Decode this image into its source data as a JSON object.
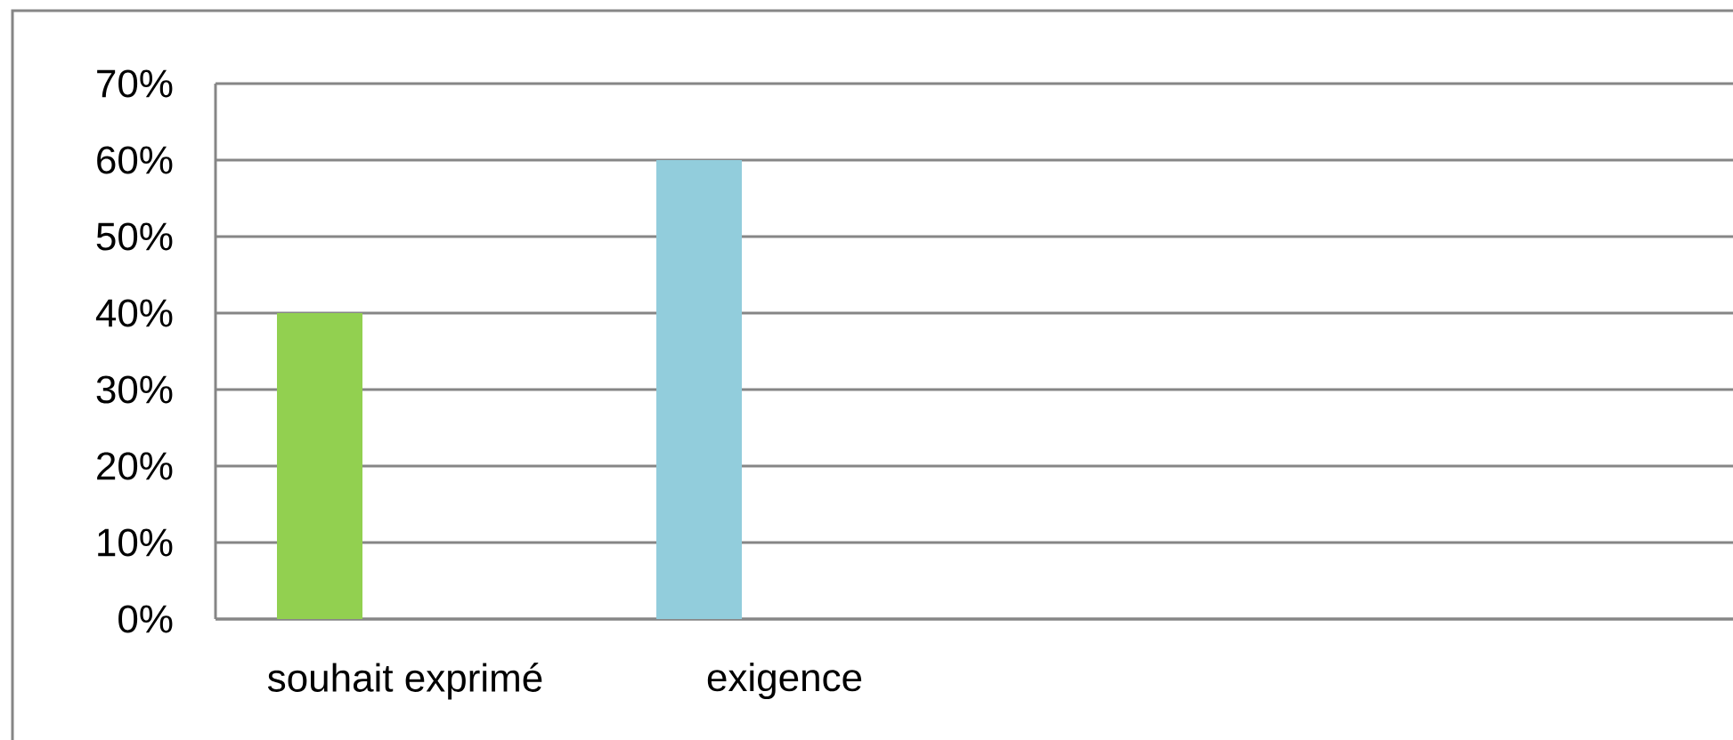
{
  "chart_data": {
    "type": "bar",
    "categories": [
      "souhait exprimé",
      "exigence",
      null,
      null
    ],
    "values": [
      40,
      60,
      null,
      null
    ],
    "colors": [
      "#92d050",
      "#92cddc",
      null,
      null
    ],
    "ylim": [
      0,
      70
    ],
    "yticks": [
      {
        "value": 0,
        "label": "0%"
      },
      {
        "value": 10,
        "label": "10%"
      },
      {
        "value": 20,
        "label": "20%"
      },
      {
        "value": 30,
        "label": "30%"
      },
      {
        "value": 40,
        "label": "40%"
      },
      {
        "value": 50,
        "label": "50%"
      },
      {
        "value": 60,
        "label": "60%"
      },
      {
        "value": 70,
        "label": "70%"
      }
    ],
    "grid": "y"
  }
}
